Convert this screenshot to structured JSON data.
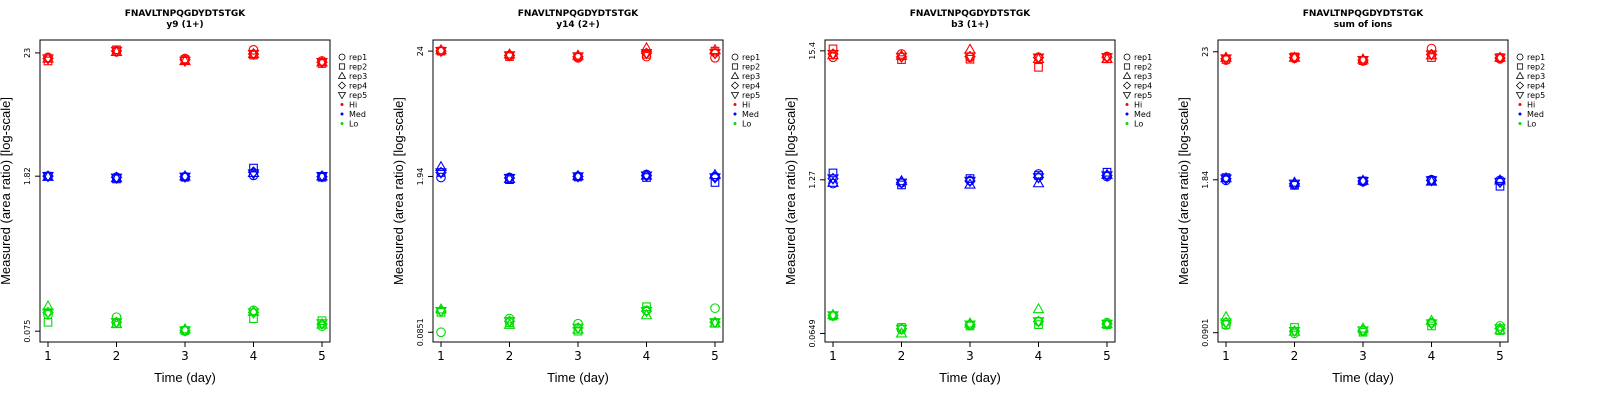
{
  "chart_data": [
    {
      "type": "scatter",
      "title": "FNAVLTNPQGDYDTSTGK",
      "subtitle": "y9 (1+)",
      "xlabel": "Time (day)",
      "ylabel": "Measured (area ratio) [log-scale]",
      "x_ticks": [
        "1",
        "2",
        "3",
        "4",
        "5"
      ],
      "y_ticks": [
        "0.075",
        "1.82",
        "23"
      ],
      "y_tick_values": [
        0.075,
        1.82,
        23
      ],
      "ylim": [
        0.06,
        30
      ],
      "scale": "log",
      "legend": [
        "rep1",
        "rep2",
        "rep3",
        "rep4",
        "rep5",
        "Hi",
        "Med",
        "Lo"
      ],
      "series": [
        {
          "name": "Hi",
          "color": "#ff0000",
          "points": {
            "rep1": [
              21,
              23.5,
              20.5,
              24.5,
              19.5
            ],
            "rep2": [
              19.5,
              24.5,
              20,
              22,
              18.5
            ],
            "rep3": [
              20.5,
              23.5,
              19.5,
              22.5,
              19
            ],
            "rep4": [
              20.5,
              24,
              20,
              22.5,
              19
            ],
            "rep5": [
              20.5,
              24,
              19.5,
              22.5,
              19
            ]
          }
        },
        {
          "name": "Med",
          "color": "#0000ff",
          "points": {
            "rep1": [
              1.82,
              1.78,
              1.8,
              1.85,
              1.82
            ],
            "rep2": [
              1.82,
              1.72,
              1.78,
              2.15,
              1.78
            ],
            "rep3": [
              1.8,
              1.75,
              1.82,
              1.95,
              1.82
            ],
            "rep4": [
              1.82,
              1.78,
              1.8,
              1.98,
              1.8
            ],
            "rep5": [
              1.82,
              1.76,
              1.8,
              1.92,
              1.82
            ]
          }
        },
        {
          "name": "Lo",
          "color": "#00dd00",
          "points": {
            "rep1": [
              0.105,
              0.1,
              0.075,
              0.115,
              0.083
            ],
            "rep2": [
              0.09,
              0.088,
              0.076,
              0.097,
              0.093
            ],
            "rep3": [
              0.125,
              0.087,
              0.078,
              0.112,
              0.086
            ],
            "rep4": [
              0.11,
              0.09,
              0.076,
              0.11,
              0.087
            ],
            "rep5": [
              0.11,
              0.09,
              0.076,
              0.11,
              0.088
            ]
          }
        }
      ]
    },
    {
      "type": "scatter",
      "title": "FNAVLTNPQGDYDTSTGK",
      "subtitle": "y14 (2+)",
      "xlabel": "Time (day)",
      "ylabel": "Measured (area ratio) [log-scale]",
      "x_ticks": [
        "1",
        "2",
        "3",
        "4",
        "5"
      ],
      "y_ticks": [
        "0.0851",
        "1.94",
        "24"
      ],
      "y_tick_values": [
        0.0851,
        1.94,
        24
      ],
      "ylim": [
        0.07,
        30
      ],
      "scale": "log",
      "legend": [
        "rep1",
        "rep2",
        "rep3",
        "rep4",
        "rep5",
        "Hi",
        "Med",
        "Lo"
      ],
      "series": [
        {
          "name": "Hi",
          "color": "#ff0000",
          "points": {
            "rep1": [
              24,
              22,
              21,
              21.5,
              21
            ],
            "rep2": [
              24,
              21.5,
              21.5,
              22.5,
              24
            ],
            "rep3": [
              24.5,
              22.5,
              22,
              25.5,
              24.5
            ],
            "rep4": [
              24,
              22,
              21.5,
              23,
              23
            ],
            "rep5": [
              24,
              22,
              21.5,
              23,
              23
            ]
          }
        },
        {
          "name": "Med",
          "color": "#0000ff",
          "points": {
            "rep1": [
              1.9,
              1.9,
              1.95,
              2.02,
              1.94
            ],
            "rep2": [
              2.1,
              1.82,
              1.92,
              1.9,
              1.72
            ],
            "rep3": [
              2.35,
              1.85,
              1.96,
              1.98,
              2
            ],
            "rep4": [
              2.1,
              1.88,
              1.94,
              1.97,
              1.9
            ],
            "rep5": [
              2.1,
              1.88,
              1.94,
              1.97,
              1.9
            ]
          }
        },
        {
          "name": "Lo",
          "color": "#00dd00",
          "points": {
            "rep1": [
              0.0851,
              0.112,
              0.101,
              0.132,
              0.138
            ],
            "rep2": [
              0.127,
              0.103,
              0.087,
              0.142,
              0.102
            ],
            "rep3": [
              0.135,
              0.099,
              0.09,
              0.12,
              0.102
            ],
            "rep4": [
              0.13,
              0.106,
              0.093,
              0.13,
              0.104
            ],
            "rep5": [
              0.13,
              0.106,
              0.093,
              0.13,
              0.104
            ]
          }
        }
      ]
    },
    {
      "type": "scatter",
      "title": "FNAVLTNPQGDYDTSTGK",
      "subtitle": "b3 (1+)",
      "xlabel": "Time (day)",
      "ylabel": "Measured (area ratio) [log-scale]",
      "x_ticks": [
        "1",
        "2",
        "3",
        "4",
        "5"
      ],
      "y_ticks": [
        "0.0649",
        "1.27",
        "15.4"
      ],
      "y_tick_values": [
        0.0649,
        1.27,
        15.4
      ],
      "ylim": [
        0.055,
        19
      ],
      "scale": "log",
      "legend": [
        "rep1",
        "rep2",
        "rep3",
        "rep4",
        "rep5",
        "Hi",
        "Med",
        "Lo"
      ],
      "series": [
        {
          "name": "Hi",
          "color": "#ff0000",
          "points": {
            "rep1": [
              13.6,
              14.5,
              13.6,
              13.6,
              13.8
            ],
            "rep2": [
              16,
              13,
              13.1,
              11.2,
              13.2
            ],
            "rep3": [
              14.2,
              14,
              15.8,
              13.2,
              13.2
            ],
            "rep4": [
              14.5,
              13.7,
              13.8,
              13.5,
              13.6
            ],
            "rep5": [
              14.5,
              13.7,
              13.8,
              13.5,
              13.6
            ]
          }
        },
        {
          "name": "Med",
          "color": "#0000ff",
          "points": {
            "rep1": [
              1.18,
              1.2,
              1.25,
              1.42,
              1.35
            ],
            "rep2": [
              1.45,
              1.15,
              1.3,
              1.38,
              1.47
            ],
            "rep3": [
              1.2,
              1.24,
              1.16,
              1.19,
              1.4
            ],
            "rep4": [
              1.3,
              1.2,
              1.24,
              1.33,
              1.38
            ],
            "rep5": [
              1.3,
              1.2,
              1.24,
              1.33,
              1.38
            ]
          }
        },
        {
          "name": "Lo",
          "color": "#00dd00",
          "points": {
            "rep1": [
              0.091,
              0.07,
              0.076,
              0.082,
              0.08
            ],
            "rep2": [
              0.091,
              0.073,
              0.075,
              0.077,
              0.077
            ],
            "rep3": [
              0.093,
              0.065,
              0.079,
              0.104,
              0.078
            ],
            "rep4": [
              0.092,
              0.071,
              0.077,
              0.082,
              0.078
            ],
            "rep5": [
              0.092,
              0.071,
              0.077,
              0.082,
              0.078
            ]
          }
        }
      ]
    },
    {
      "type": "scatter",
      "title": "FNAVLTNPQGDYDTSTGK",
      "subtitle": "sum of ions",
      "xlabel": "Time (day)",
      "ylabel": "Measured (area ratio) [log-scale]",
      "x_ticks": [
        "1",
        "2",
        "3",
        "4",
        "5"
      ],
      "y_ticks": [
        "0.0901",
        "1.84",
        "23"
      ],
      "y_tick_values": [
        0.0901,
        1.84,
        23
      ],
      "ylim": [
        0.075,
        29
      ],
      "scale": "log",
      "legend": [
        "rep1",
        "rep2",
        "rep3",
        "rep4",
        "rep5",
        "Hi",
        "Med",
        "Lo"
      ],
      "series": [
        {
          "name": "Hi",
          "color": "#ff0000",
          "points": {
            "rep1": [
              19.5,
              20.2,
              19.2,
              24.5,
              20
            ],
            "rep2": [
              19.8,
              20.8,
              19.3,
              20.5,
              20.5
            ],
            "rep3": [
              20.5,
              20.5,
              19.8,
              21.5,
              20.5
            ],
            "rep4": [
              20.1,
              20.5,
              19.5,
              21.8,
              20.4
            ],
            "rep5": [
              20.1,
              20.5,
              19.5,
              21.8,
              20.4
            ]
          }
        },
        {
          "name": "Med",
          "color": "#0000ff",
          "points": {
            "rep1": [
              1.82,
              1.68,
              1.77,
              1.84,
              1.82
            ],
            "rep2": [
              1.92,
              1.65,
              1.8,
              1.82,
              1.62
            ],
            "rep3": [
              1.9,
              1.74,
              1.81,
              1.78,
              1.82
            ],
            "rep4": [
              1.88,
              1.7,
              1.79,
              1.82,
              1.76
            ],
            "rep5": [
              1.88,
              1.7,
              1.79,
              1.82,
              1.76
            ]
          }
        },
        {
          "name": "Lo",
          "color": "#00dd00",
          "points": {
            "rep1": [
              0.105,
              0.089,
              0.093,
              0.11,
              0.103
            ],
            "rep2": [
              0.106,
              0.1,
              0.091,
              0.103,
              0.094
            ],
            "rep3": [
              0.123,
              0.092,
              0.098,
              0.114,
              0.095
            ],
            "rep4": [
              0.11,
              0.093,
              0.094,
              0.108,
              0.098
            ],
            "rep5": [
              0.11,
              0.093,
              0.094,
              0.108,
              0.098
            ]
          }
        }
      ]
    }
  ]
}
